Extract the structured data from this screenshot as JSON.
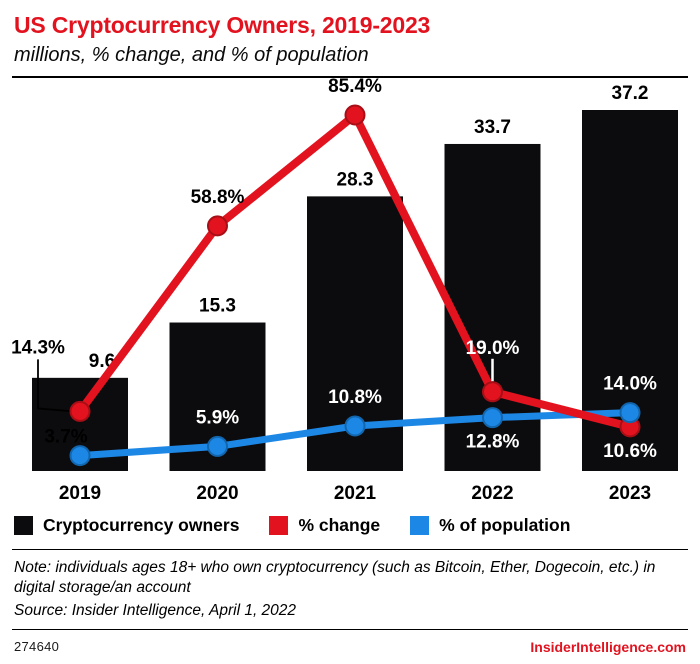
{
  "header": {
    "title": "US Cryptocurrency Owners, 2019-2023",
    "subtitle": "millions, % change, and % of population"
  },
  "colors": {
    "accent_red": "#e2131f",
    "accent_blue": "#1d87e6",
    "bar_black": "#0c0c0e"
  },
  "chart_data": {
    "type": "bar",
    "title": "US Cryptocurrency Owners, 2019-2023",
    "subtitle": "millions, % change, and % of population",
    "categories": [
      "2019",
      "2020",
      "2021",
      "2022",
      "2023"
    ],
    "axes_visible": false,
    "legend_position": "bottom",
    "series": [
      {
        "name": "Cryptocurrency owners",
        "type": "bar",
        "unit": "millions",
        "color": "#0c0c0e",
        "values": [
          9.6,
          15.3,
          28.3,
          33.7,
          37.2
        ],
        "labels": [
          "9.6",
          "15.3",
          "28.3",
          "33.7",
          "37.2"
        ],
        "label_dx": [
          22,
          0,
          0,
          0,
          0
        ],
        "ylim": [
          0,
          40
        ]
      },
      {
        "name": "% change",
        "type": "line",
        "unit": "percent",
        "color": "#e2131f",
        "marker_stroke": "#a80e16",
        "stroke_width": 8,
        "values": [
          14.3,
          58.8,
          85.4,
          19.0,
          10.6
        ],
        "labels": [
          "14.3%",
          "58.8%",
          "85.4%",
          "19.0%",
          "10.6%"
        ],
        "label_pos": [
          "left-connector",
          "above",
          "above",
          "above-connector",
          "below"
        ],
        "label_color": [
          "#000000",
          "#000000",
          "#000000",
          "#ffffff",
          "#ffffff"
        ],
        "ylim": [
          0,
          100
        ]
      },
      {
        "name": "% of population",
        "type": "line",
        "unit": "percent",
        "color": "#1d87e6",
        "marker_stroke": "#1266ad",
        "stroke_width": 7,
        "values": [
          3.7,
          5.9,
          10.8,
          12.8,
          14.0
        ],
        "labels": [
          "3.7%",
          "5.9%",
          "10.8%",
          "12.8%",
          "14.0%"
        ],
        "label_pos": [
          "above-left",
          "above",
          "above",
          "below",
          "above"
        ],
        "label_color": [
          "#000000",
          "#ffffff",
          "#ffffff",
          "#ffffff",
          "#ffffff"
        ],
        "ylim": [
          0,
          100
        ]
      }
    ]
  },
  "legend": {
    "items": [
      {
        "label": "Cryptocurrency owners",
        "color": "#0c0c0e"
      },
      {
        "label": "% change",
        "color": "#e2131f"
      },
      {
        "label": "% of population",
        "color": "#1d87e6"
      }
    ]
  },
  "notes": {
    "note": "Note: individuals ages 18+ who own cryptocurrency (such as Bitcoin, Ether, Dogecoin, etc.) in digital storage/an account",
    "source": "Source: Insider Intelligence, April 1, 2022"
  },
  "footer": {
    "id": "274640",
    "site": "InsiderIntelligence.com"
  }
}
